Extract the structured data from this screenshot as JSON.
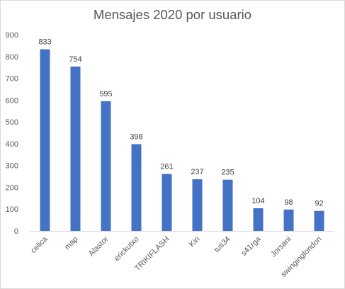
{
  "chart_data": {
    "type": "bar",
    "title": "Mensajes 2020 por usuario",
    "xlabel": "",
    "ylabel": "",
    "ylim": [
      0,
      900
    ],
    "yticks": [
      0,
      100,
      200,
      300,
      400,
      500,
      600,
      700,
      800,
      900
    ],
    "grid": false,
    "legend": "none",
    "bar_color": "#4472C4",
    "categories": [
      "celica",
      "map",
      "Alastor",
      "erickutxo",
      "TRIKIFLASH",
      "Kiri",
      "tuti34",
      "s41rga",
      "Jorsani",
      "swinginglondon"
    ],
    "values": [
      833,
      754,
      595,
      398,
      261,
      237,
      235,
      104,
      98,
      92
    ]
  }
}
